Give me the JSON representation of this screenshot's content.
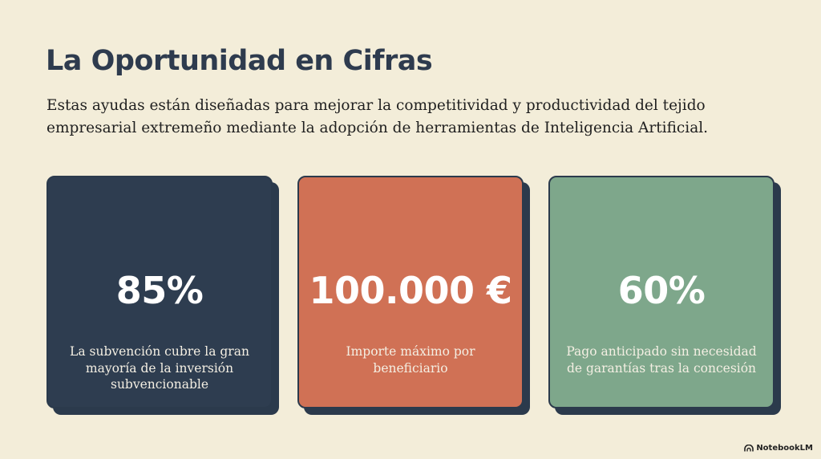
{
  "slide": {
    "title": "La Oportunidad en Cifras",
    "intro_lines": [
      "Estas ayudas están diseñadas para mejorar la competitividad y productividad del tejido",
      "empresarial extremeño mediante la adopción de herramientas de Inteligencia Artificial."
    ]
  },
  "cards": [
    {
      "stat": "85%",
      "desc_lines": [
        "La subvención cubre la gran",
        "mayoría de la inversión",
        "subvencionable"
      ],
      "color": "#2e3d50"
    },
    {
      "stat": "100.000 €",
      "desc_lines": [
        "Importe máximo por",
        "beneficiario"
      ],
      "color": "#d07155"
    },
    {
      "stat": "60%",
      "desc_lines": [
        "Pago anticipado sin necesidad",
        "de garantías tras la concesión"
      ],
      "color": "#7ea78b"
    }
  ],
  "branding": {
    "label": "NotebookLM",
    "icon": "notebooklm-logo-icon"
  }
}
